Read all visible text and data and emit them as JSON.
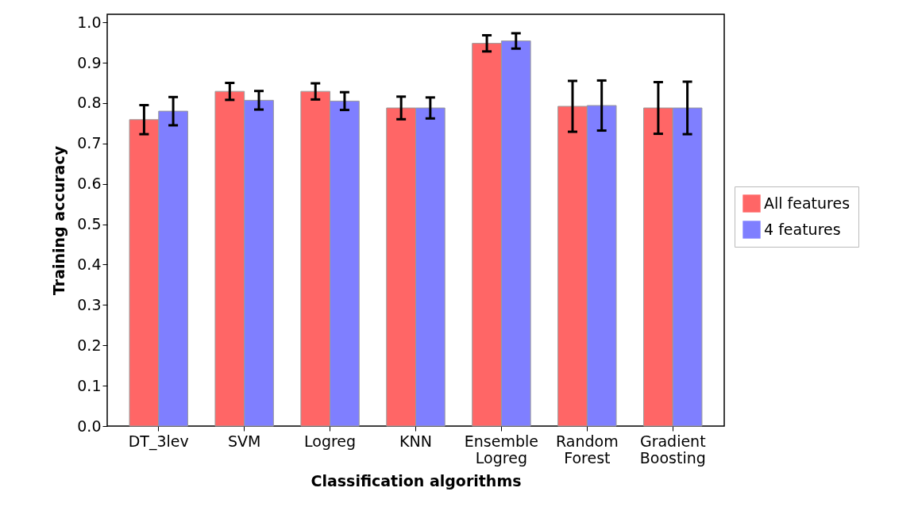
{
  "chart_data": {
    "type": "bar",
    "xlabel": "Classification algorithms",
    "ylabel": "Training accuracy",
    "categories": [
      "DT_3lev",
      "SVM",
      "Logreg",
      "KNN",
      "Ensemble\nLogreg",
      "Random\nForest",
      "Gradient\nBoosting"
    ],
    "series": [
      {
        "name": "All features",
        "color": "#ff6666",
        "values": [
          0.759,
          0.829,
          0.829,
          0.788,
          0.948,
          0.792,
          0.788
        ],
        "errors": [
          0.036,
          0.021,
          0.02,
          0.028,
          0.02,
          0.063,
          0.064
        ]
      },
      {
        "name": "4 features",
        "color": "#7f7fff",
        "values": [
          0.78,
          0.807,
          0.805,
          0.788,
          0.954,
          0.794,
          0.788
        ],
        "errors": [
          0.035,
          0.023,
          0.022,
          0.026,
          0.019,
          0.062,
          0.065
        ]
      }
    ],
    "ylim": [
      0,
      1.02
    ],
    "yticks": [
      {
        "value": 0,
        "label": "0.0"
      },
      {
        "value": 0.1,
        "label": "0.1"
      },
      {
        "value": 0.2,
        "label": "0.2"
      },
      {
        "value": 0.3,
        "label": "0.3"
      },
      {
        "value": 0.4,
        "label": "0.4"
      },
      {
        "value": 0.5,
        "label": "0.5"
      },
      {
        "value": 0.6,
        "label": "0.6"
      },
      {
        "value": 0.7,
        "label": "0.7"
      },
      {
        "value": 0.8,
        "label": "0.8"
      },
      {
        "value": 0.9,
        "label": "0.9"
      },
      {
        "value": 1,
        "label": "1.0"
      }
    ],
    "legend": "right",
    "grid": false
  }
}
